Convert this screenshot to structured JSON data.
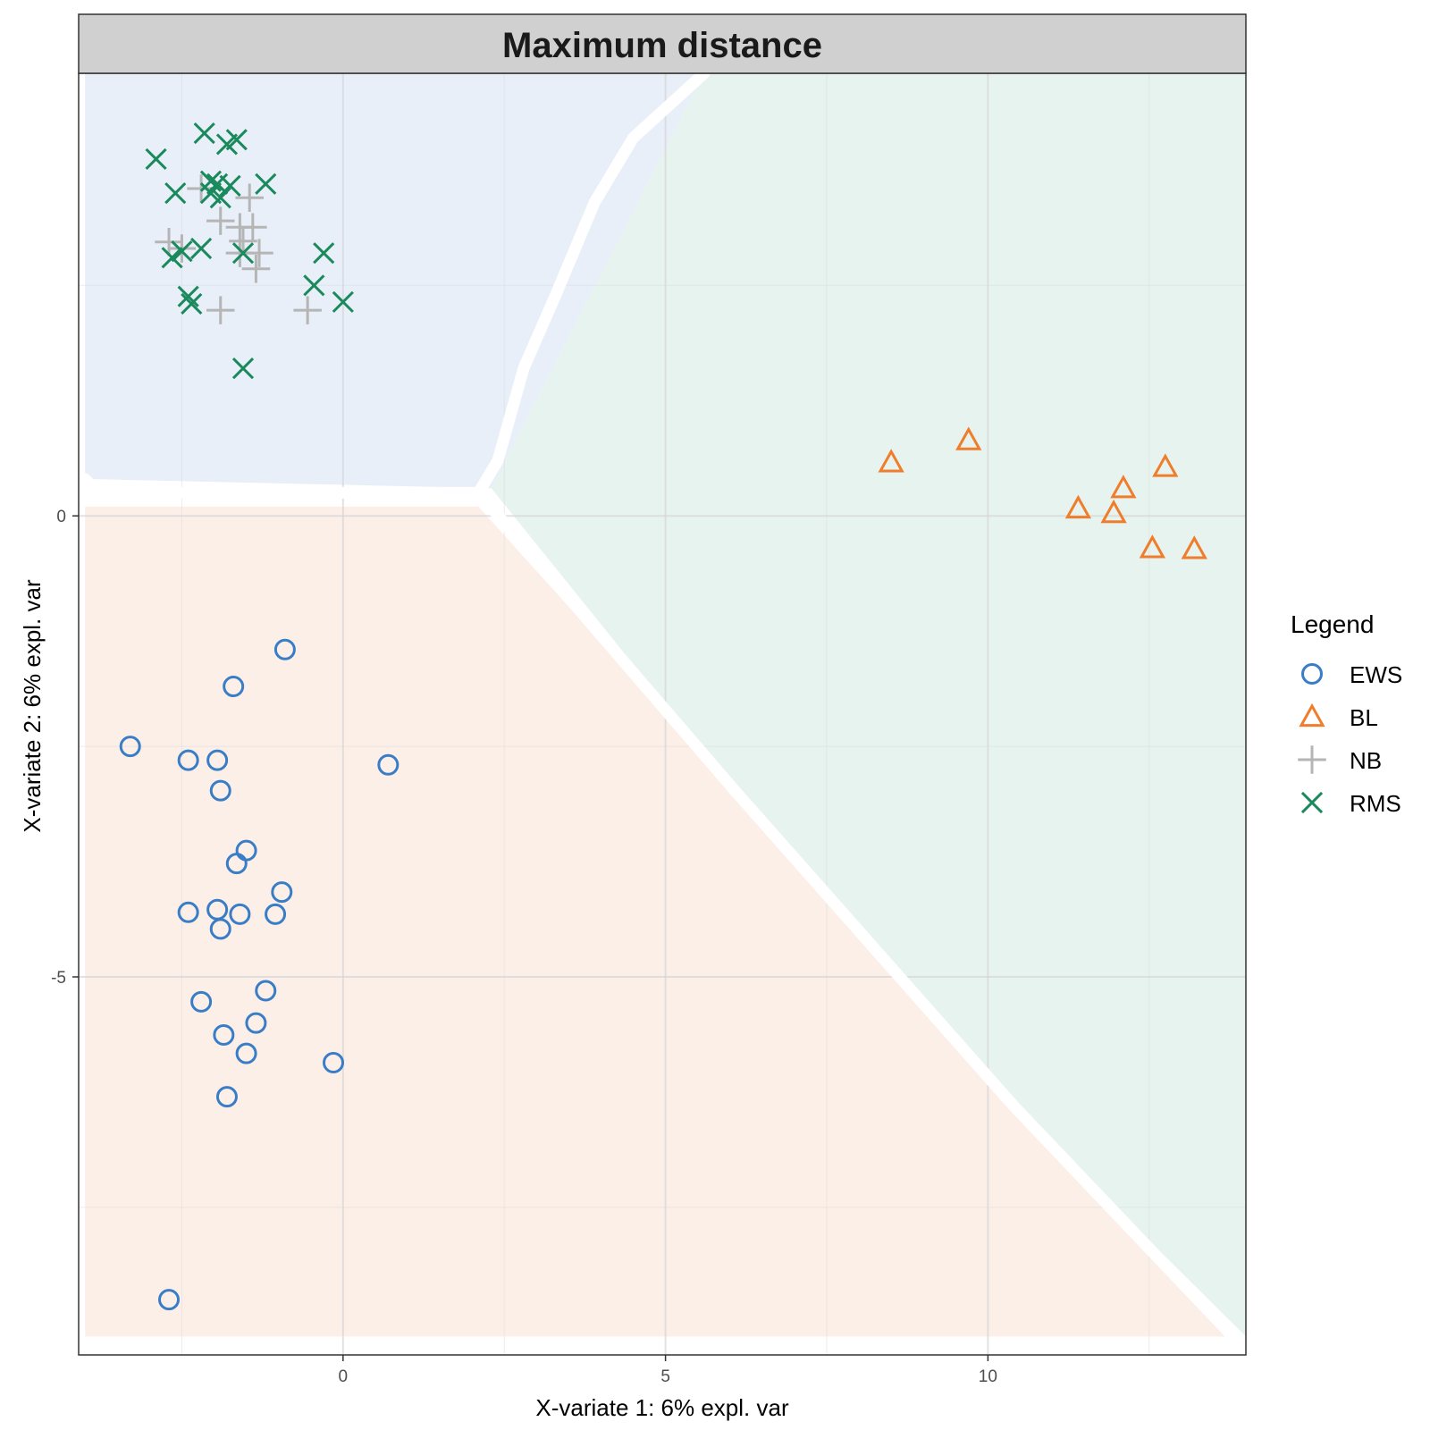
{
  "chart_data": {
    "type": "scatter",
    "title": "Maximum distance",
    "xlabel": "X-variate 1: 6% expl. var",
    "ylabel": "X-variate 2: 6% expl. var",
    "xlim": [
      -4.1,
      14.0
    ],
    "ylim": [
      -9.1,
      4.8
    ],
    "xticks": [
      0,
      5,
      10
    ],
    "yticks": [
      0,
      -5
    ],
    "grid": true,
    "legend": {
      "title": "Legend",
      "position": "right"
    },
    "regions": [
      {
        "class": "EWS",
        "color": "#e8eff8",
        "polygon": [
          [
            -4.0,
            4.8
          ],
          [
            5.6,
            4.8
          ],
          [
            2.3,
            0.3
          ],
          [
            -4.0,
            0.4
          ]
        ]
      },
      {
        "class": "RMS",
        "color": "#e6f3ee",
        "polygon": [
          [
            5.6,
            4.8
          ],
          [
            14.0,
            4.8
          ],
          [
            14.0,
            -8.9
          ],
          [
            10.4,
            -6.4
          ],
          [
            6.1,
            -3.0
          ],
          [
            2.3,
            0.3
          ]
        ]
      },
      {
        "class": "NB",
        "color": "#fcefe8",
        "polygon": [
          [
            -4.0,
            0.1
          ],
          [
            2.1,
            0.1
          ],
          [
            6.1,
            -3.0
          ],
          [
            10.4,
            -6.4
          ],
          [
            13.8,
            -8.9
          ],
          [
            -4.0,
            -8.9
          ]
        ]
      }
    ],
    "boundaries": [
      [
        [
          -4.0,
          0.4
        ],
        [
          -3.8,
          0.25
        ],
        [
          2.1,
          0.25
        ],
        [
          2.4,
          0.6
        ],
        [
          2.8,
          1.6
        ],
        [
          3.3,
          2.4
        ],
        [
          3.9,
          3.4
        ],
        [
          4.5,
          4.1
        ],
        [
          5.6,
          4.8
        ]
      ],
      [
        [
          2.1,
          0.25
        ],
        [
          6.1,
          -3.0
        ],
        [
          10.4,
          -6.4
        ],
        [
          13.8,
          -8.9
        ]
      ]
    ],
    "series": [
      {
        "name": "EWS",
        "shape": "circle",
        "color": "#3a7dc7",
        "points": [
          [
            -0.9,
            -1.45
          ],
          [
            -1.7,
            -1.85
          ],
          [
            -3.3,
            -2.5
          ],
          [
            -2.4,
            -2.65
          ],
          [
            -1.95,
            -2.65
          ],
          [
            0.7,
            -2.7
          ],
          [
            -1.9,
            -2.98
          ],
          [
            -1.5,
            -3.63
          ],
          [
            -1.65,
            -3.77
          ],
          [
            -0.95,
            -4.08
          ],
          [
            -2.4,
            -4.3
          ],
          [
            -1.95,
            -4.27
          ],
          [
            -1.6,
            -4.32
          ],
          [
            -1.05,
            -4.32
          ],
          [
            -1.9,
            -4.48
          ],
          [
            -1.2,
            -5.15
          ],
          [
            -2.2,
            -5.27
          ],
          [
            -1.35,
            -5.5
          ],
          [
            -1.85,
            -5.63
          ],
          [
            -1.5,
            -5.83
          ],
          [
            -0.15,
            -5.93
          ],
          [
            -1.8,
            -6.3
          ],
          [
            -2.7,
            -8.5
          ]
        ]
      },
      {
        "name": "BL",
        "shape": "triangle",
        "color": "#ef7d2b",
        "points": [
          [
            8.5,
            0.58
          ],
          [
            9.7,
            0.82
          ],
          [
            12.75,
            0.53
          ],
          [
            12.1,
            0.3
          ],
          [
            11.4,
            0.08
          ],
          [
            11.95,
            0.03
          ],
          [
            12.55,
            -0.35
          ],
          [
            13.2,
            -0.36
          ]
        ]
      },
      {
        "name": "NB",
        "shape": "plus",
        "color": "#b5b5b5",
        "points": [
          [
            -2.2,
            3.55
          ],
          [
            -1.45,
            3.45
          ],
          [
            -1.9,
            3.2
          ],
          [
            -1.6,
            3.13
          ],
          [
            -1.4,
            3.13
          ],
          [
            -1.55,
            2.98
          ],
          [
            -2.7,
            2.97
          ],
          [
            -2.5,
            2.9
          ],
          [
            -1.6,
            2.85
          ],
          [
            -1.3,
            2.85
          ],
          [
            -1.35,
            2.68
          ],
          [
            -1.9,
            2.23
          ],
          [
            -0.55,
            2.23
          ]
        ]
      },
      {
        "name": "RMS",
        "shape": "cross",
        "color": "#1a8a5d",
        "points": [
          [
            -2.15,
            4.15
          ],
          [
            -1.8,
            4.03
          ],
          [
            -1.65,
            4.08
          ],
          [
            -2.9,
            3.87
          ],
          [
            -2.05,
            3.63
          ],
          [
            -1.95,
            3.6
          ],
          [
            -1.75,
            3.58
          ],
          [
            -1.2,
            3.6
          ],
          [
            -2.6,
            3.5
          ],
          [
            -2.05,
            3.5
          ],
          [
            -1.9,
            3.45
          ],
          [
            -2.2,
            2.9
          ],
          [
            -2.5,
            2.87
          ],
          [
            -1.55,
            2.85
          ],
          [
            -2.65,
            2.8
          ],
          [
            -0.3,
            2.85
          ],
          [
            -0.45,
            2.5
          ],
          [
            -2.4,
            2.38
          ],
          [
            -2.35,
            2.3
          ],
          [
            0.0,
            2.32
          ],
          [
            -1.55,
            1.6
          ]
        ]
      }
    ]
  }
}
